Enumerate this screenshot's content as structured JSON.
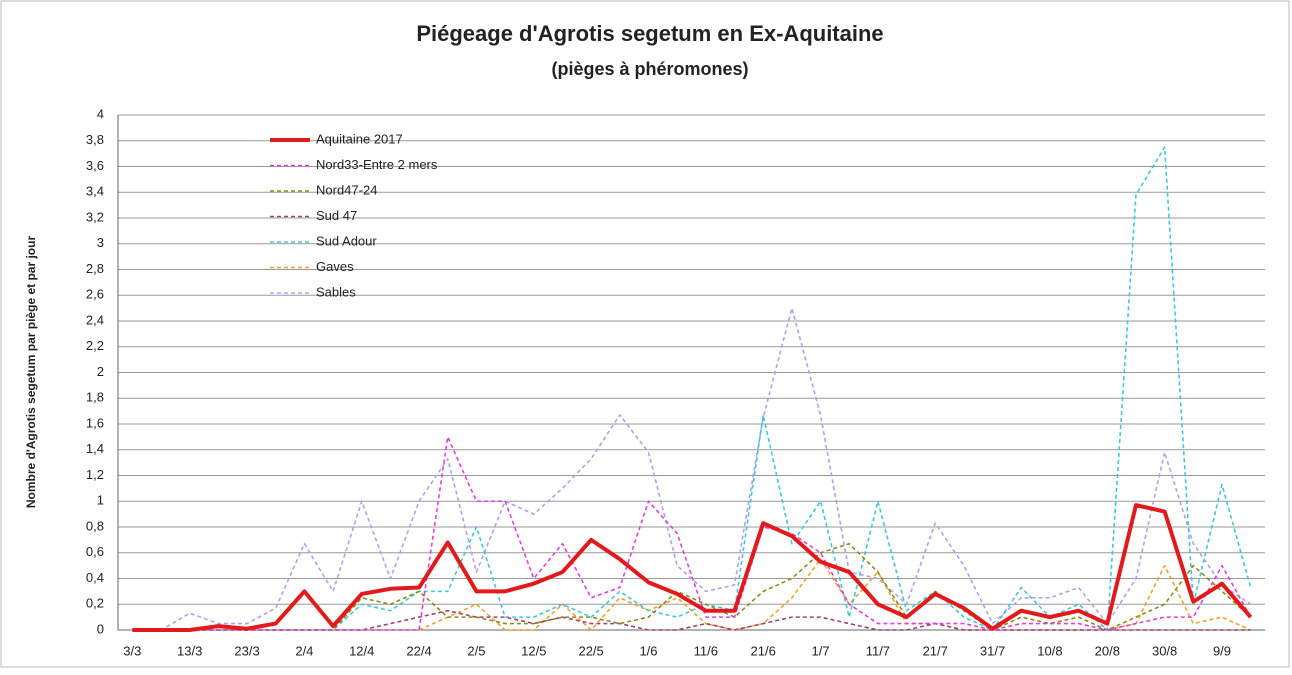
{
  "chart_data": {
    "type": "line",
    "title": "Piégeage d'Agrotis segetum en Ex-Aquitaine",
    "subtitle": "(pièges à phéromones)",
    "y_label": "Nombre d'Agrotis segetum par piège et par jour",
    "categories": [
      "3/3",
      null,
      "13/3",
      null,
      "23/3",
      null,
      "2/4",
      null,
      "12/4",
      null,
      "22/4",
      null,
      "2/5",
      null,
      "12/5",
      null,
      "22/5",
      null,
      "1/6",
      null,
      "11/6",
      null,
      "21/6",
      null,
      "1/7",
      null,
      "11/7",
      null,
      "21/7",
      null,
      "31/7",
      null,
      "10/8",
      null,
      "20/8",
      null,
      "30/8",
      null,
      "9/9",
      null
    ],
    "ylim": [
      0,
      4
    ],
    "yticks": [
      0,
      {
        "value": 0.2,
        "label": "0,2"
      },
      {
        "value": 0.4,
        "label": "0,4"
      },
      {
        "value": 0.6,
        "label": "0,6"
      },
      {
        "value": 0.8,
        "label": "0,8"
      },
      1,
      {
        "value": 1.2,
        "label": "1,2"
      },
      {
        "value": 1.4,
        "label": "1,4"
      },
      {
        "value": 1.6,
        "label": "1,6"
      },
      {
        "value": 1.8,
        "label": "1,8"
      },
      2,
      {
        "value": 2.2,
        "label": "2,2"
      },
      {
        "value": 2.4,
        "label": "2,4"
      },
      {
        "value": 2.6,
        "label": "2,6"
      },
      {
        "value": 2.8,
        "label": "2,8"
      },
      3,
      {
        "value": 3.2,
        "label": "3,2"
      },
      {
        "value": 3.4,
        "label": "3,4"
      },
      {
        "value": 3.6,
        "label": "3,6"
      },
      {
        "value": 3.8,
        "label": "3,8"
      },
      4
    ],
    "grid": true,
    "legend": "top-left",
    "series": [
      {
        "name": "Aquitaine 2017",
        "color": "#e31a1c",
        "values": [
          0,
          0,
          0,
          0.03,
          0.01,
          0.05,
          0.3,
          0.03,
          0.28,
          0.32,
          0.33,
          0.68,
          0.3,
          0.3,
          0.36,
          0.45,
          0.7,
          0.55,
          0.37,
          0.28,
          0.15,
          0.15,
          0.83,
          0.73,
          0.53,
          0.45,
          0.2,
          0.1,
          0.28,
          0.17,
          0.01,
          0.15,
          0.1,
          0.15,
          0.05,
          0.97,
          0.92,
          0.22,
          0.36,
          0.1
        ]
      },
      {
        "name": "Nord33-Entre 2 mers",
        "color": "#e040e0",
        "values": [
          0,
          0,
          0,
          0,
          0,
          0,
          0,
          0,
          0,
          0,
          0,
          1.5,
          1.0,
          1.0,
          0.4,
          0.67,
          0.25,
          0.33,
          1.0,
          0.75,
          0.1,
          0.1,
          0.8,
          0.75,
          0.6,
          0.2,
          0.05,
          0.05,
          0.05,
          0.05,
          0,
          0.05,
          0.05,
          0.05,
          0,
          0.05,
          0.1,
          0.1,
          0.5,
          0.1
        ]
      },
      {
        "name": "Nord47-24",
        "color": "#8b8b1a",
        "values": [
          0,
          0,
          0,
          0,
          0,
          0,
          0,
          0,
          0.25,
          0.2,
          0.3,
          0.1,
          0.1,
          0.05,
          0.05,
          0.1,
          0.1,
          0.05,
          0.1,
          0.3,
          0.2,
          0.1,
          0.3,
          0.4,
          0.6,
          0.67,
          0.45,
          0.1,
          0.3,
          0.15,
          0,
          0.1,
          0.05,
          0.1,
          0,
          0.1,
          0.2,
          0.5,
          0.3,
          0.1
        ]
      },
      {
        "name": "Sud 47",
        "color": "#a0407a",
        "values": [
          0,
          0,
          0,
          0,
          0,
          0,
          0,
          0,
          0,
          0.05,
          0.1,
          0.15,
          0.1,
          0.1,
          0.05,
          0.1,
          0.05,
          0.05,
          0,
          0,
          0.05,
          0,
          0.05,
          0.1,
          0.1,
          0.05,
          0,
          0,
          0.05,
          0,
          0,
          0,
          0,
          0,
          0,
          0,
          0,
          0,
          0,
          0
        ]
      },
      {
        "name": "Sud Adour",
        "color": "#40c8d8",
        "values": [
          0,
          0,
          0,
          0,
          0,
          0,
          0,
          0,
          0.2,
          0.15,
          0.3,
          0.3,
          0.8,
          0.1,
          0.1,
          0.2,
          0.1,
          0.3,
          0.15,
          0.1,
          0.2,
          0.15,
          1.67,
          0.67,
          1.0,
          0.1,
          1.0,
          0.15,
          0.3,
          0.1,
          0,
          0.33,
          0.1,
          0.2,
          0,
          3.38,
          3.75,
          0.2,
          1.13,
          0.33
        ]
      },
      {
        "name": "Gaves",
        "color": "#f5a030",
        "values": [
          0,
          0,
          0,
          0,
          0,
          0,
          0,
          0,
          0,
          0,
          0,
          0.1,
          0.2,
          0,
          0,
          0.2,
          0,
          0.25,
          0.15,
          0.25,
          0.05,
          0,
          0.05,
          0.25,
          0.55,
          0.2,
          0.45,
          0.05,
          0.05,
          0,
          0,
          0,
          0,
          0,
          0,
          0.05,
          0.5,
          0.05,
          0.1,
          0
        ]
      },
      {
        "name": "Sables",
        "color": "#b0a0f0",
        "values": [
          0,
          0,
          0.13,
          0.05,
          0.05,
          0.17,
          0.67,
          0.3,
          1.0,
          0.4,
          1.0,
          1.33,
          0.45,
          1.0,
          0.9,
          1.1,
          1.33,
          1.67,
          1.38,
          0.5,
          0.3,
          0.35,
          1.65,
          2.5,
          1.67,
          0.45,
          0.4,
          0.2,
          0.83,
          0.5,
          0.05,
          0.25,
          0.25,
          0.33,
          0.05,
          0.4,
          1.38,
          0.67,
          0.35,
          0.2
        ]
      }
    ]
  }
}
